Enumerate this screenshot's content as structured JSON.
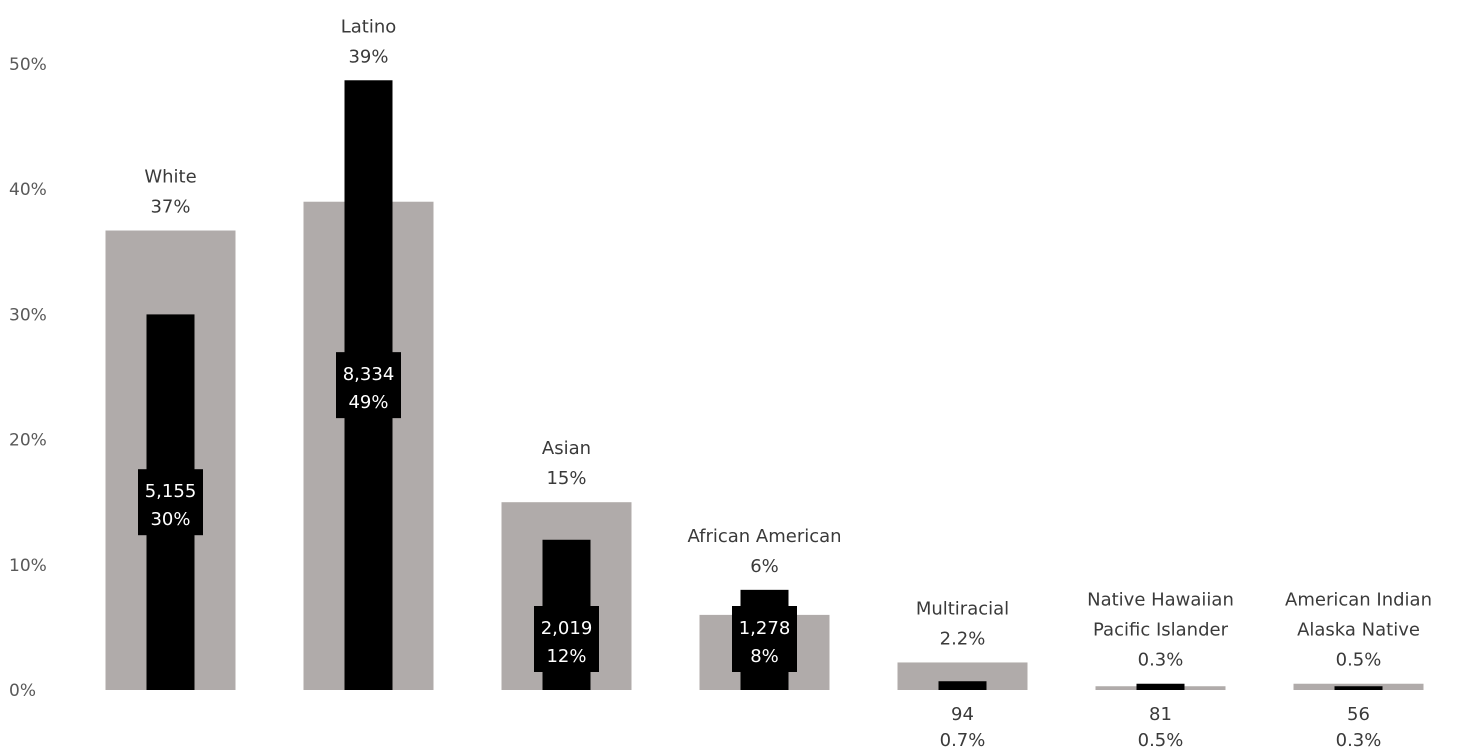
{
  "chart_data": {
    "type": "bar",
    "categories": [
      {
        "lines": [
          "White"
        ],
        "share_label": "37%"
      },
      {
        "lines": [
          "Latino"
        ],
        "share_label": "39%"
      },
      {
        "lines": [
          "Asian"
        ],
        "share_label": "15%"
      },
      {
        "lines": [
          "African American"
        ],
        "share_label": "6%"
      },
      {
        "lines": [
          "Multiracial"
        ],
        "share_label": "2.2%"
      },
      {
        "lines": [
          "Native Hawaiian",
          "Pacific Islander"
        ],
        "share_label": "0.3%"
      },
      {
        "lines": [
          "American Indian",
          "Alaska Native"
        ],
        "share_label": "0.5%"
      }
    ],
    "series": [
      {
        "values": [
          36.7,
          39.0,
          15.0,
          6.0,
          2.2,
          0.3,
          0.5
        ],
        "color": "#b0abaa"
      },
      {
        "values": [
          30.0,
          48.7,
          12.0,
          8.0,
          0.7,
          0.5,
          0.3
        ],
        "color": "#000000",
        "count_labels": [
          "5,155",
          "8,334",
          "2,019",
          "1,278",
          "94",
          "81",
          "56"
        ],
        "pct_labels": [
          "30%",
          "49%",
          "12%",
          "8%",
          "0.7%",
          "0.5%",
          "0.3%"
        ]
      }
    ],
    "yticks": [
      "0%",
      "10%",
      "20%",
      "30%",
      "40%",
      "50%"
    ],
    "ylim": [
      0,
      50
    ],
    "grid": false,
    "legend": "none"
  }
}
